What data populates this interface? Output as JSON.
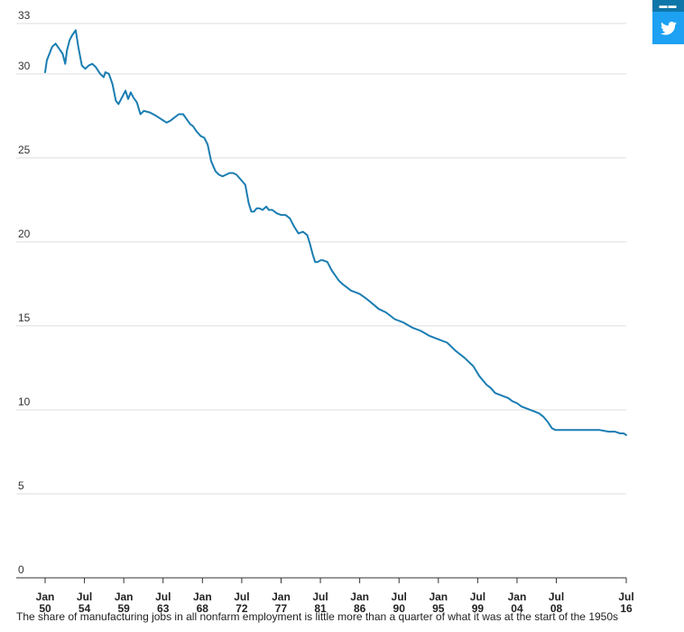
{
  "share": {
    "linkedin_icon": "linkedin-icon",
    "twitter_icon": "twitter-icon",
    "linkedin_color": "#0e76a8",
    "twitter_color": "#1da1f2"
  },
  "caption": "The share of manufacturing jobs in all nonfarm employment is little more than a quarter of what it was at the start of the 1950s",
  "chart_data": {
    "type": "line",
    "title": "",
    "xlabel": "",
    "ylabel": "",
    "ylim": [
      0,
      33
    ],
    "yticks": [
      0,
      5,
      10,
      15,
      20,
      25,
      30,
      33
    ],
    "grid": true,
    "legend": "none",
    "line_color": "#1a7db2",
    "xticks": [
      {
        "x": 1950.0,
        "label": [
          "Jan",
          "50"
        ]
      },
      {
        "x": 1954.5,
        "label": [
          "Jul",
          "54"
        ]
      },
      {
        "x": 1959.0,
        "label": [
          "Jan",
          "59"
        ]
      },
      {
        "x": 1963.5,
        "label": [
          "Jul",
          "63"
        ]
      },
      {
        "x": 1968.0,
        "label": [
          "Jan",
          "68"
        ]
      },
      {
        "x": 1972.5,
        "label": [
          "Jul",
          "72"
        ]
      },
      {
        "x": 1977.0,
        "label": [
          "Jan",
          "77"
        ]
      },
      {
        "x": 1981.5,
        "label": [
          "Jul",
          "81"
        ]
      },
      {
        "x": 1986.0,
        "label": [
          "Jan",
          "86"
        ]
      },
      {
        "x": 1990.5,
        "label": [
          "Jul",
          "90"
        ]
      },
      {
        "x": 1995.0,
        "label": [
          "Jan",
          "95"
        ]
      },
      {
        "x": 1999.5,
        "label": [
          "Jul",
          "99"
        ]
      },
      {
        "x": 2004.0,
        "label": [
          "Jan",
          "04"
        ]
      },
      {
        "x": 2008.5,
        "label": [
          "Jul",
          "08"
        ]
      },
      {
        "x": 2016.5,
        "label": [
          "Jul",
          "16"
        ]
      }
    ],
    "xlim": [
      1950.0,
      2016.5
    ],
    "series": [
      {
        "x": [
          1950.0,
          1950.2,
          1950.5,
          1950.8,
          1951.2,
          1951.6,
          1952.0,
          1952.3,
          1952.5,
          1952.8,
          1953.1,
          1953.5,
          1953.8,
          1954.2,
          1954.6,
          1955.0,
          1955.4,
          1955.8,
          1956.3,
          1956.7,
          1956.9,
          1957.3,
          1957.7,
          1958.1,
          1958.4,
          1958.8,
          1959.2,
          1959.5,
          1959.8,
          1960.1,
          1960.5,
          1960.9,
          1961.3,
          1962.0,
          1962.7,
          1963.3,
          1963.6,
          1963.9,
          1964.3,
          1964.8,
          1965.3,
          1965.8,
          1966.2,
          1966.6,
          1966.9,
          1967.3,
          1967.8,
          1968.2,
          1968.6,
          1969.0,
          1969.5,
          1969.9,
          1970.3,
          1970.7,
          1971.1,
          1971.5,
          1971.9,
          1972.4,
          1972.9,
          1973.3,
          1973.6,
          1973.9,
          1974.2,
          1974.5,
          1974.9,
          1975.3,
          1975.6,
          1976.0,
          1976.5,
          1977.0,
          1977.5,
          1978.0,
          1978.5,
          1979.0,
          1979.5,
          1980.0,
          1980.3,
          1980.6,
          1980.9,
          1981.2,
          1981.5,
          1981.8,
          1982.3,
          1982.8,
          1983.2,
          1983.6,
          1984.0,
          1984.5,
          1985.0,
          1985.5,
          1986.0,
          1986.8,
          1987.5,
          1988.2,
          1989.0,
          1990.0,
          1991.0,
          1992.0,
          1993.0,
          1994.0,
          1995.0,
          1996.0,
          1997.0,
          1998.0,
          1999.0,
          1999.7,
          2000.5,
          2001.0,
          2001.5,
          2002.0,
          2002.5,
          2003.0,
          2003.5,
          2004.0,
          2004.5,
          2005.0,
          2005.5,
          2006.0,
          2006.5,
          2007.0,
          2007.5,
          2008.0,
          2008.4,
          2008.8,
          2009.2,
          2009.5,
          2009.8,
          2010.5,
          2011.5,
          2012.5,
          2013.5,
          2014.5,
          2015.2,
          2015.8,
          2016.2,
          2016.5
        ],
        "y": [
          30.1,
          30.8,
          31.2,
          31.6,
          31.8,
          31.5,
          31.2,
          30.6,
          31.4,
          32.0,
          32.3,
          32.6,
          31.6,
          30.5,
          30.3,
          30.5,
          30.6,
          30.4,
          30.0,
          29.8,
          30.1,
          30.0,
          29.4,
          28.4,
          28.2,
          28.6,
          29.0,
          28.5,
          28.9,
          28.6,
          28.3,
          27.6,
          27.8,
          27.7,
          27.5,
          27.3,
          27.2,
          27.1,
          27.2,
          27.4,
          27.6,
          27.6,
          27.3,
          27.0,
          26.9,
          26.6,
          26.3,
          26.2,
          25.8,
          24.8,
          24.2,
          24.0,
          23.9,
          24.0,
          24.1,
          24.1,
          24.0,
          23.7,
          23.4,
          22.3,
          21.8,
          21.8,
          22.0,
          22.0,
          21.9,
          22.1,
          21.9,
          21.9,
          21.7,
          21.6,
          21.6,
          21.4,
          20.9,
          20.5,
          20.6,
          20.4,
          19.9,
          19.3,
          18.8,
          18.8,
          18.9,
          18.9,
          18.8,
          18.3,
          18.0,
          17.7,
          17.5,
          17.3,
          17.1,
          17.0,
          16.9,
          16.6,
          16.3,
          16.0,
          15.8,
          15.4,
          15.2,
          14.9,
          14.7,
          14.4,
          14.2,
          14.0,
          13.5,
          13.1,
          12.6,
          12.0,
          11.5,
          11.3,
          11.0,
          10.9,
          10.8,
          10.7,
          10.5,
          10.4,
          10.2,
          10.1,
          10.0,
          9.9,
          9.8,
          9.6,
          9.3,
          8.9,
          8.8,
          8.8,
          8.8,
          8.8,
          8.8,
          8.8,
          8.8,
          8.8,
          8.8,
          8.7,
          8.7,
          8.6,
          8.6,
          8.5
        ]
      }
    ]
  }
}
